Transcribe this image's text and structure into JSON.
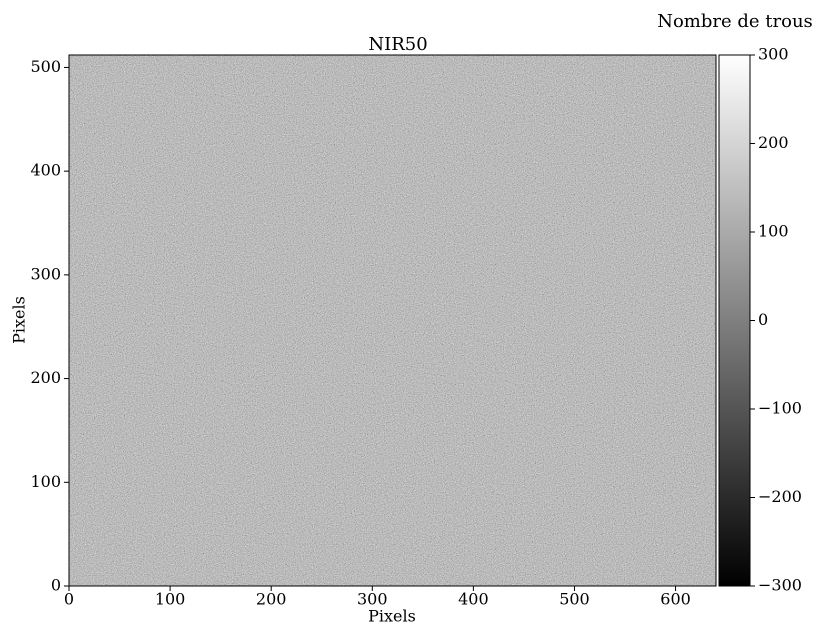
{
  "chart_data": {
    "type": "heatmap",
    "title": "NIR50",
    "xlabel": "Pixels",
    "ylabel": "Pixels",
    "xlim": [
      0,
      640
    ],
    "ylim": [
      0,
      512
    ],
    "xticks": [
      0,
      100,
      200,
      300,
      400,
      500,
      600
    ],
    "yticks": [
      0,
      100,
      200,
      300,
      400,
      500
    ],
    "colormap": "gray",
    "colorbar": {
      "label": "Nombre de trous",
      "lim": [
        -300,
        300
      ],
      "ticks": [
        {
          "value": -300,
          "label": "−300"
        },
        {
          "value": -200,
          "label": "−200"
        },
        {
          "value": -100,
          "label": "−100"
        },
        0,
        100,
        200,
        300
      ]
    }
  }
}
